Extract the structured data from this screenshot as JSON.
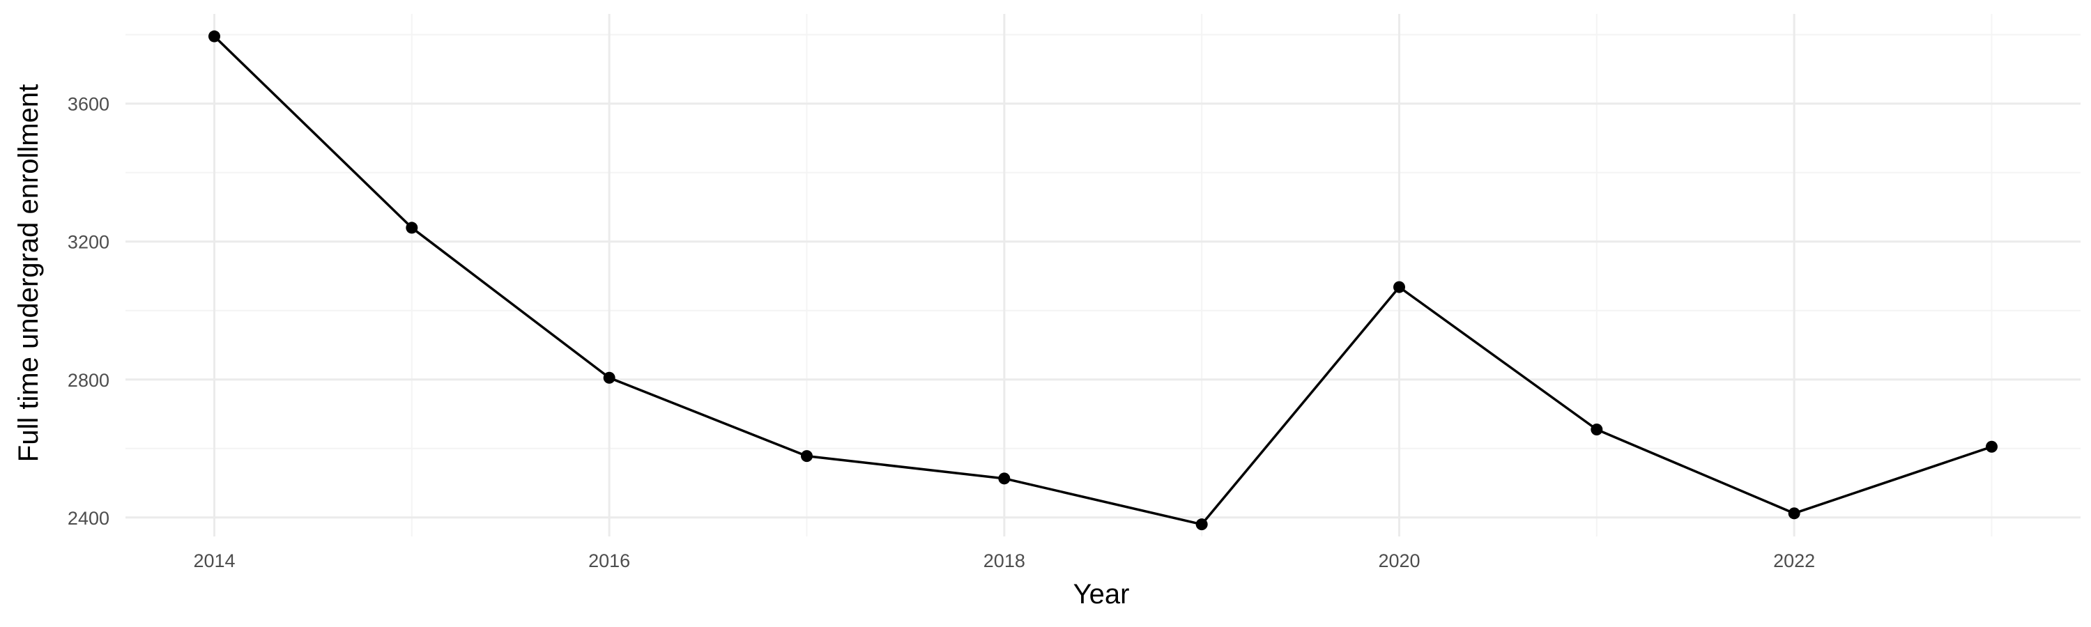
{
  "chart_data": {
    "type": "line",
    "title": "",
    "xlabel": "Year",
    "ylabel": "Full time undergrad enrollment",
    "x": [
      2014,
      2015,
      2016,
      2017,
      2018,
      2019,
      2020,
      2021,
      2022,
      2023
    ],
    "series": [
      {
        "values": [
          3795,
          3240,
          2805,
          2578,
          2513,
          2380,
          3068,
          2655,
          2412,
          2605
        ]
      }
    ],
    "xlim": [
      2013.55,
      2023.45
    ],
    "ylim": [
      2345,
      3860
    ],
    "x_ticks": [
      2014,
      2016,
      2018,
      2020,
      2022
    ],
    "x_tick_labels": [
      "2014",
      "2016",
      "2018",
      "2020",
      "2022"
    ],
    "y_ticks": [
      2400,
      2800,
      3200,
      3600
    ],
    "y_tick_labels": [
      "2400",
      "2800",
      "3200",
      "3600"
    ],
    "grid": true,
    "legend": "none",
    "colors": {
      "line": "#000000",
      "point": "#000000",
      "grid_major": "#ebebeb",
      "grid_minor": "#f4f4f4"
    }
  }
}
